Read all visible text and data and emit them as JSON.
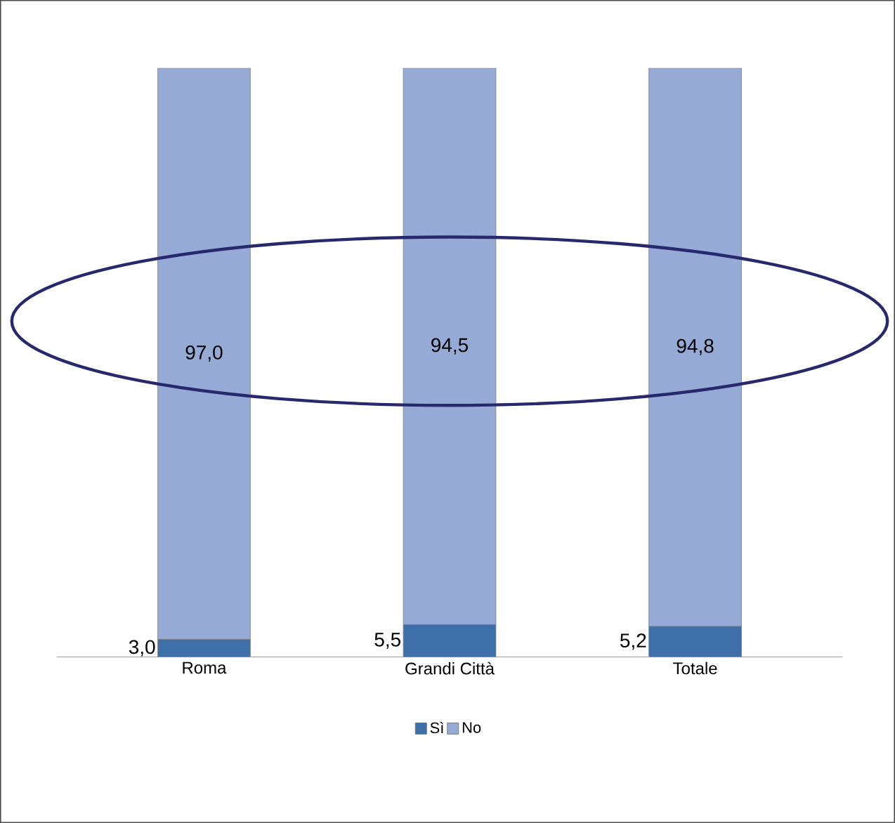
{
  "chart_data": {
    "type": "bar",
    "stacked": true,
    "categories": [
      "Roma",
      "Grandi Città",
      "Totale"
    ],
    "series": [
      {
        "name": "Sì",
        "color": "#3f6fa8",
        "values": [
          3.0,
          5.5,
          5.2
        ],
        "value_labels": [
          "3,0",
          "5,5",
          "5,2"
        ]
      },
      {
        "name": "No",
        "color": "#95abd6",
        "values": [
          97.0,
          94.5,
          94.8
        ],
        "value_labels": [
          "97,0",
          "94,5",
          "94,8"
        ]
      }
    ],
    "legend": "bottom"
  }
}
